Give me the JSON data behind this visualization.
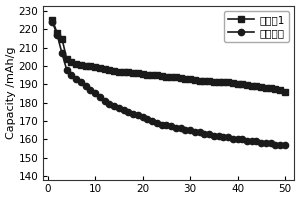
{
  "title": "",
  "xlabel": "",
  "ylabel": "Capacity /mAh/g",
  "xlim": [
    -1,
    52
  ],
  "ylim": [
    138,
    233
  ],
  "yticks": [
    140,
    150,
    160,
    170,
    180,
    190,
    200,
    210,
    220,
    230
  ],
  "xticks": [
    0,
    10,
    20,
    30,
    40,
    50
  ],
  "legend_labels": [
    "实施例1",
    "常规材料"
  ],
  "series1_x": [
    1,
    2,
    3,
    4,
    5,
    6,
    7,
    8,
    9,
    10,
    11,
    12,
    13,
    14,
    15,
    16,
    17,
    18,
    19,
    20,
    21,
    22,
    23,
    24,
    25,
    26,
    27,
    28,
    29,
    30,
    31,
    32,
    33,
    34,
    35,
    36,
    37,
    38,
    39,
    40,
    41,
    42,
    43,
    44,
    45,
    46,
    47,
    48,
    49,
    50
  ],
  "series1_y": [
    225,
    218,
    215,
    204,
    202,
    201,
    200.5,
    200,
    200,
    199.5,
    199,
    198.5,
    198,
    197.5,
    197,
    197,
    196.5,
    196,
    196,
    195.5,
    195,
    195,
    195,
    194.5,
    194,
    194,
    194,
    193.5,
    193,
    193,
    192.5,
    192,
    192,
    192,
    191.5,
    191,
    191,
    191,
    190.5,
    190,
    190,
    189.5,
    189,
    189,
    188.5,
    188,
    188,
    187.5,
    187,
    186
  ],
  "series2_x": [
    1,
    2,
    3,
    4,
    5,
    6,
    7,
    8,
    9,
    10,
    11,
    12,
    13,
    14,
    15,
    16,
    17,
    18,
    19,
    20,
    21,
    22,
    23,
    24,
    25,
    26,
    27,
    28,
    29,
    30,
    31,
    32,
    33,
    34,
    35,
    36,
    37,
    38,
    39,
    40,
    41,
    42,
    43,
    44,
    45,
    46,
    47,
    48,
    49,
    50
  ],
  "series2_y": [
    224,
    217,
    207,
    198,
    195,
    193,
    191,
    189,
    187,
    185,
    183,
    181,
    179,
    178,
    177,
    176,
    175,
    174,
    173,
    172,
    171,
    170,
    169,
    168,
    168,
    167,
    166,
    166,
    165,
    165,
    164,
    164,
    163,
    163,
    162,
    162,
    161,
    161,
    160,
    160,
    160,
    159,
    159,
    159,
    158,
    158,
    158,
    157,
    157,
    157
  ],
  "line_color1": "#1a1a1a",
  "line_color2": "#1a1a1a",
  "marker_style1": "s",
  "marker_style2": "o",
  "marker_size1": 4.5,
  "marker_size2": 4.5,
  "line_width": 1.2,
  "bg_color": "#ffffff",
  "font_size_ylabel": 8,
  "font_size_tick": 7.5,
  "font_size_legend": 7.5
}
